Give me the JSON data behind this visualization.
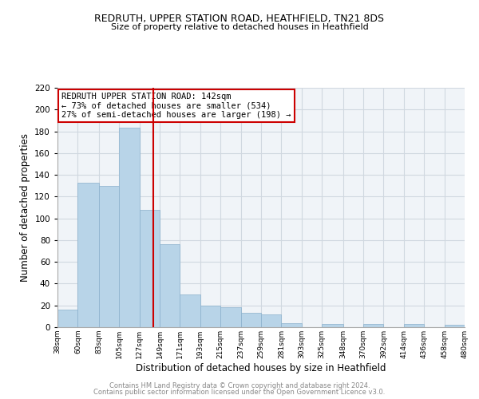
{
  "title1": "REDRUTH, UPPER STATION ROAD, HEATHFIELD, TN21 8DS",
  "title2": "Size of property relative to detached houses in Heathfield",
  "xlabel": "Distribution of detached houses by size in Heathfield",
  "ylabel": "Number of detached properties",
  "bar_color": "#b8d4e8",
  "bar_edge_color": "#8ab0cc",
  "vline_x": 142,
  "vline_color": "#cc0000",
  "annotation_title": "REDRUTH UPPER STATION ROAD: 142sqm",
  "annotation_line1": "← 73% of detached houses are smaller (534)",
  "annotation_line2": "27% of semi-detached houses are larger (198) →",
  "annotation_border_color": "#cc0000",
  "bins": [
    38,
    60,
    83,
    105,
    127,
    149,
    171,
    193,
    215,
    237,
    259,
    281,
    303,
    325,
    348,
    370,
    392,
    414,
    436,
    458,
    480
  ],
  "counts": [
    16,
    133,
    130,
    183,
    108,
    76,
    30,
    20,
    18,
    13,
    12,
    4,
    0,
    3,
    0,
    3,
    0,
    3,
    0,
    2
  ],
  "tick_labels": [
    "38sqm",
    "60sqm",
    "83sqm",
    "105sqm",
    "127sqm",
    "149sqm",
    "171sqm",
    "193sqm",
    "215sqm",
    "237sqm",
    "259sqm",
    "281sqm",
    "303sqm",
    "325sqm",
    "348sqm",
    "370sqm",
    "392sqm",
    "414sqm",
    "436sqm",
    "458sqm",
    "480sqm"
  ],
  "ylim": [
    0,
    220
  ],
  "yticks": [
    0,
    20,
    40,
    60,
    80,
    100,
    120,
    140,
    160,
    180,
    200,
    220
  ],
  "footer1": "Contains HM Land Registry data © Crown copyright and database right 2024.",
  "footer2": "Contains public sector information licensed under the Open Government Licence v3.0.",
  "footer_color": "#888888",
  "grid_color": "#d0d8e0",
  "bg_color": "#f0f4f8"
}
